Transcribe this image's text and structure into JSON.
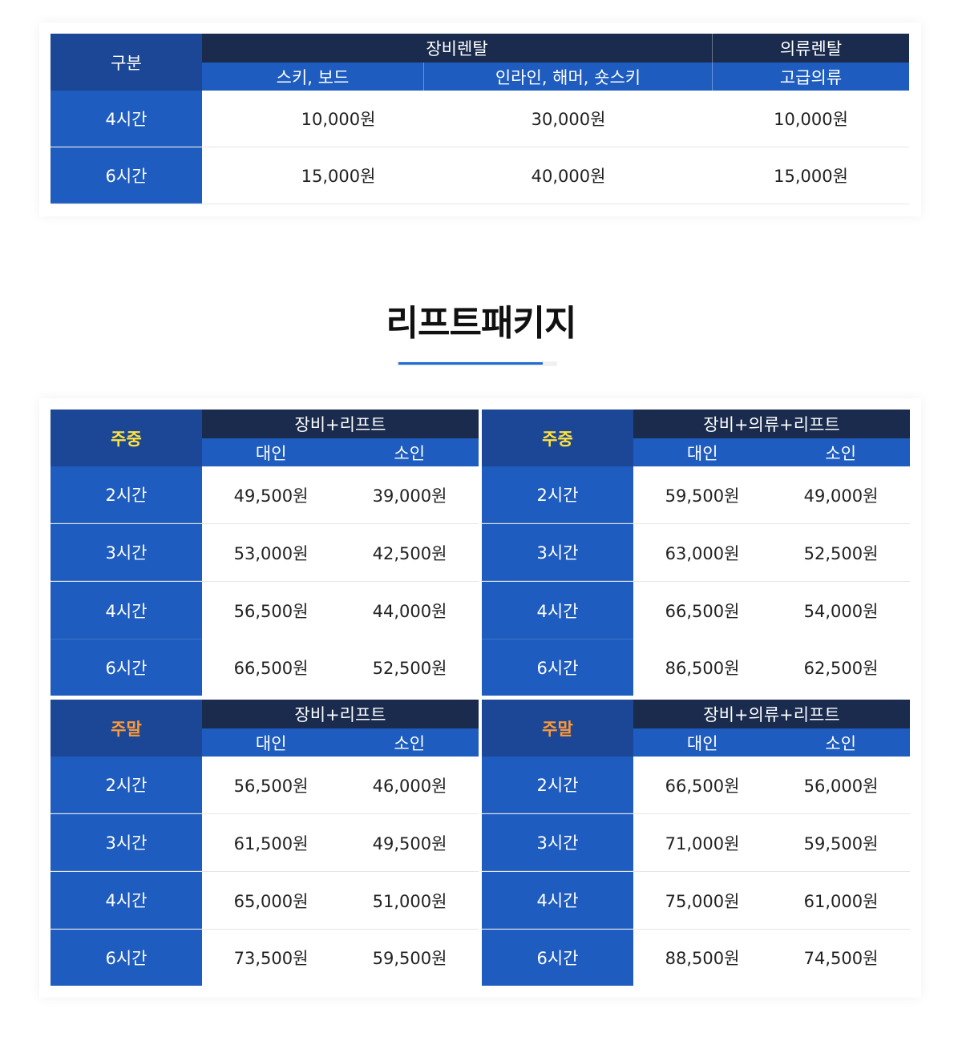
{
  "rental": {
    "label": "구분",
    "groups": {
      "equipment": "장비렌탈",
      "clothing": "의류렌탈"
    },
    "subs": [
      "스키, 보드",
      "인라인, 해머, 숏스키",
      "고급의류"
    ],
    "rows": [
      {
        "label": "4시간",
        "values": [
          "10,000원",
          "30,000원",
          "10,000원"
        ]
      },
      {
        "label": "6시간",
        "values": [
          "15,000원",
          "40,000원",
          "15,000원"
        ]
      }
    ]
  },
  "section": {
    "title": "리프트패키지"
  },
  "packages": [
    {
      "label": "주중",
      "group": "장비+리프트",
      "subs": [
        "대인",
        "소인"
      ],
      "rows": [
        {
          "label": "2시간",
          "values": [
            "49,500원",
            "39,000원"
          ]
        },
        {
          "label": "3시간",
          "values": [
            "53,000원",
            "42,500원"
          ]
        },
        {
          "label": "4시간",
          "values": [
            "56,500원",
            "44,000원"
          ]
        },
        {
          "label": "6시간",
          "values": [
            "66,500원",
            "52,500원"
          ]
        }
      ]
    },
    {
      "label": "주중",
      "group": "장비+의류+리프트",
      "subs": [
        "대인",
        "소인"
      ],
      "rows": [
        {
          "label": "2시간",
          "values": [
            "59,500원",
            "49,000원"
          ]
        },
        {
          "label": "3시간",
          "values": [
            "63,000원",
            "52,500원"
          ]
        },
        {
          "label": "4시간",
          "values": [
            "66,500원",
            "54,000원"
          ]
        },
        {
          "label": "6시간",
          "values": [
            "86,500원",
            "62,500원"
          ]
        }
      ]
    },
    {
      "label": "주말",
      "group": "장비+리프트",
      "subs": [
        "대인",
        "소인"
      ],
      "rows": [
        {
          "label": "2시간",
          "values": [
            "56,500원",
            "46,000원"
          ]
        },
        {
          "label": "3시간",
          "values": [
            "61,500원",
            "49,500원"
          ]
        },
        {
          "label": "4시간",
          "values": [
            "65,000원",
            "51,000원"
          ]
        },
        {
          "label": "6시간",
          "values": [
            "73,500원",
            "59,500원"
          ]
        }
      ]
    },
    {
      "label": "주말",
      "group": "장비+의류+리프트",
      "subs": [
        "대인",
        "소인"
      ],
      "rows": [
        {
          "label": "2시간",
          "values": [
            "66,500원",
            "56,000원"
          ]
        },
        {
          "label": "3시간",
          "values": [
            "71,000원",
            "59,500원"
          ]
        },
        {
          "label": "4시간",
          "values": [
            "75,000원",
            "61,000원"
          ]
        },
        {
          "label": "6시간",
          "values": [
            "88,500원",
            "74,500원"
          ]
        }
      ]
    }
  ]
}
